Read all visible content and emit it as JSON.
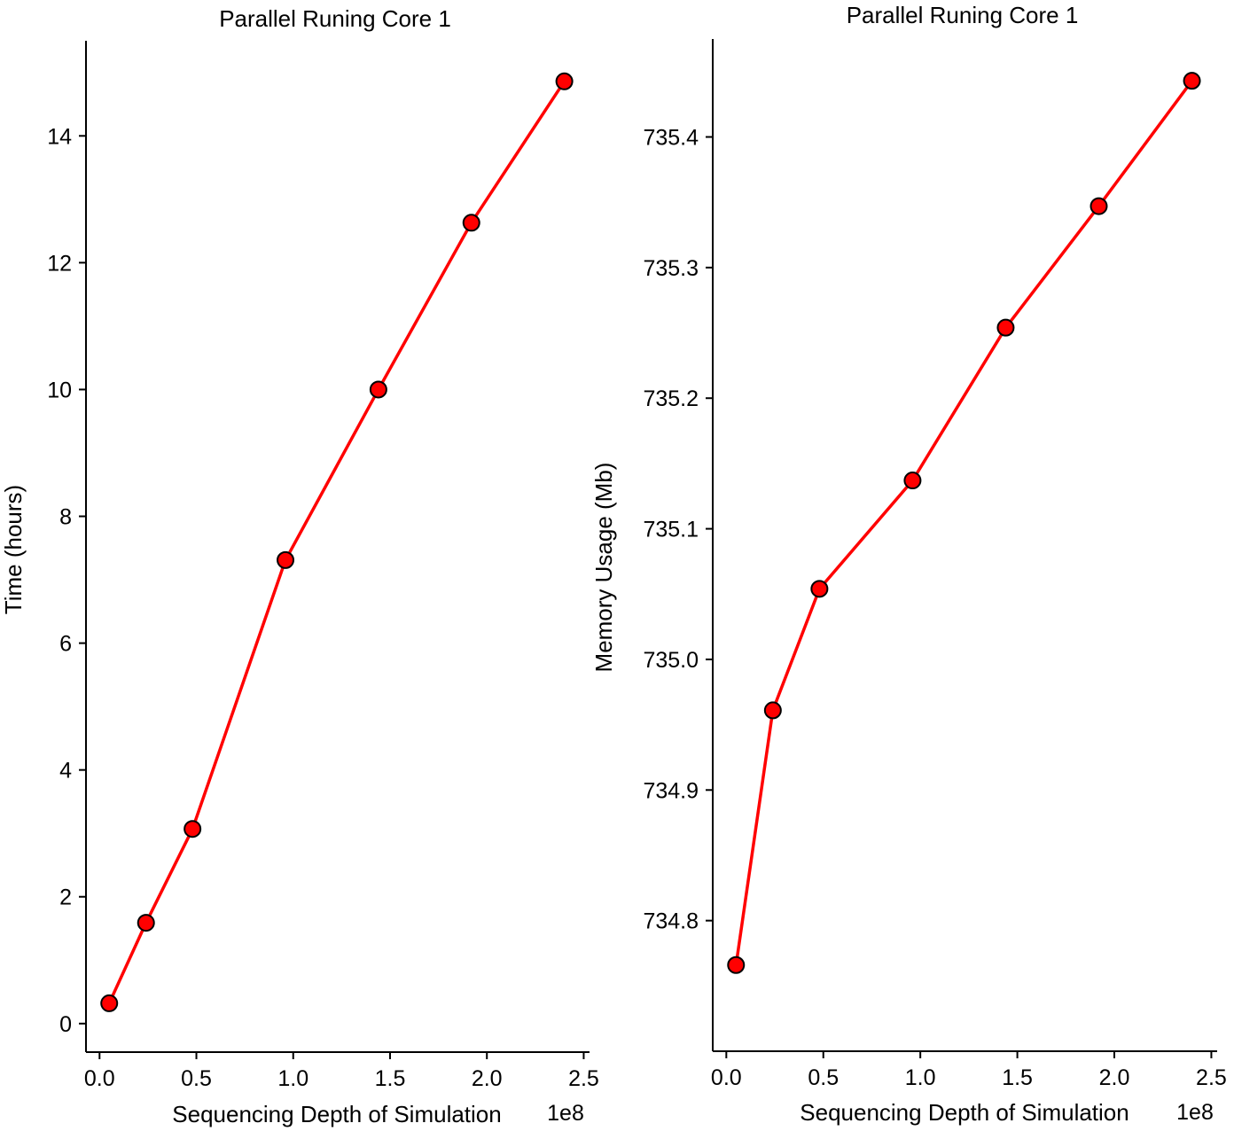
{
  "chart_data": [
    {
      "type": "line",
      "title": "Parallel Runing Core 1",
      "xlabel": "Sequencing Depth of Simulation",
      "ylabel": "Time (hours)",
      "x_offset_label": "1e8",
      "xlim": [
        -0.07,
        2.53
      ],
      "ylim": [
        -0.45,
        15.5
      ],
      "xticks": [
        0.0,
        0.5,
        1.0,
        1.5,
        2.0,
        2.5
      ],
      "xtick_labels": [
        "0.0",
        "0.5",
        "1.0",
        "1.5",
        "2.0",
        "2.5"
      ],
      "yticks": [
        0,
        2,
        4,
        6,
        8,
        10,
        12,
        14
      ],
      "ytick_labels": [
        "0",
        "2",
        "4",
        "6",
        "8",
        "10",
        "12",
        "14"
      ],
      "grid": false,
      "line_color": "#ff0000",
      "marker_fill": "#ff0000",
      "marker_edge": "#000000",
      "series": [
        {
          "x": [
            0.05,
            0.24,
            0.48,
            0.96,
            1.44,
            1.92,
            2.4
          ],
          "y": [
            0.32,
            1.59,
            3.07,
            7.31,
            10.0,
            12.63,
            14.86
          ]
        }
      ]
    },
    {
      "type": "line",
      "title": "Parallel Runing Core 1",
      "xlabel": "Sequencing Depth of Simulation",
      "ylabel": "Memory Usage (Mb)",
      "x_offset_label": "1e8",
      "xlim": [
        -0.07,
        2.53
      ],
      "ylim": [
        734.7,
        735.475
      ],
      "xticks": [
        0.0,
        0.5,
        1.0,
        1.5,
        2.0,
        2.5
      ],
      "xtick_labels": [
        "0.0",
        "0.5",
        "1.0",
        "1.5",
        "2.0",
        "2.5"
      ],
      "yticks": [
        734.8,
        734.9,
        735.0,
        735.1,
        735.2,
        735.3,
        735.4
      ],
      "ytick_labels": [
        "734.8",
        "734.9",
        "735.0",
        "735.1",
        "735.2",
        "735.3",
        "735.4"
      ],
      "grid": false,
      "line_color": "#ff0000",
      "marker_fill": "#ff0000",
      "marker_edge": "#000000",
      "series": [
        {
          "x": [
            0.05,
            0.24,
            0.48,
            0.96,
            1.44,
            1.92,
            2.4
          ],
          "y": [
            734.766,
            734.961,
            735.054,
            735.137,
            735.254,
            735.347,
            735.443
          ]
        }
      ]
    }
  ]
}
